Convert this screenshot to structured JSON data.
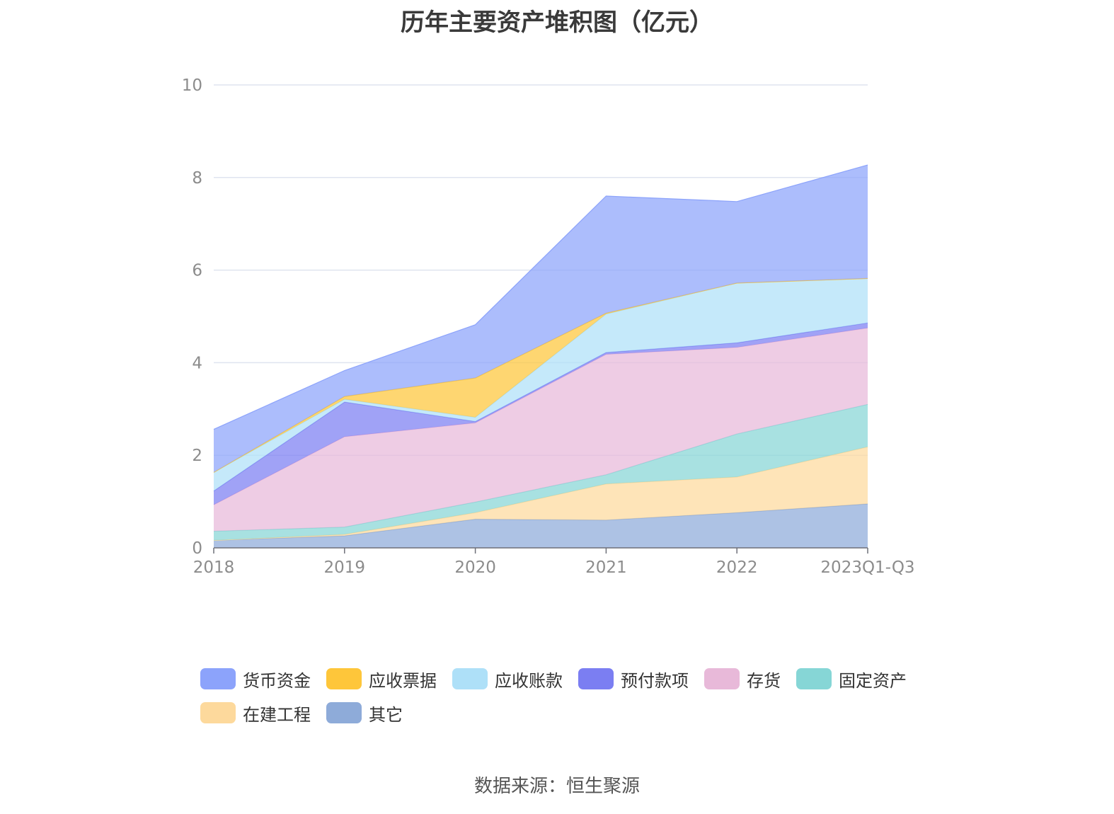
{
  "chart_data": {
    "type": "area",
    "stacked": true,
    "title": "历年主要资产堆积图（亿元）",
    "categories": [
      "2018",
      "2019",
      "2020",
      "2021",
      "2022",
      "2023Q1-Q3"
    ],
    "ylim": [
      0,
      10
    ],
    "yticks": [
      0,
      2,
      4,
      6,
      8,
      10
    ],
    "grid": true,
    "legend_position": "bottom",
    "series": [
      {
        "name": "其它",
        "color": "#8eabd9",
        "values": [
          0.16,
          0.26,
          0.62,
          0.6,
          0.76,
          0.95
        ]
      },
      {
        "name": "在建工程",
        "color": "#fdd99c",
        "values": [
          0.0,
          0.03,
          0.14,
          0.78,
          0.77,
          1.23
        ]
      },
      {
        "name": "固定资产",
        "color": "#86d6d6",
        "values": [
          0.2,
          0.16,
          0.23,
          0.2,
          0.93,
          0.92
        ]
      },
      {
        "name": "存货",
        "color": "#e8b9d9",
        "values": [
          0.57,
          1.95,
          1.71,
          2.6,
          1.87,
          1.65
        ]
      },
      {
        "name": "预付款项",
        "color": "#7b7ef2",
        "values": [
          0.3,
          0.75,
          0.03,
          0.04,
          0.1,
          0.11
        ]
      },
      {
        "name": "应收账款",
        "color": "#aee0f8",
        "values": [
          0.4,
          0.06,
          0.09,
          0.83,
          1.29,
          0.96
        ]
      },
      {
        "name": "应收票据",
        "color": "#fec63a",
        "values": [
          0.0,
          0.06,
          0.85,
          0.02,
          0.0,
          0.0
        ]
      },
      {
        "name": "货币资金",
        "color": "#8ca3fb",
        "values": [
          0.93,
          0.56,
          1.15,
          2.53,
          1.76,
          2.45
        ]
      }
    ]
  },
  "legend": {
    "items": [
      {
        "label": "货币资金",
        "color": "#8ca3fb"
      },
      {
        "label": "应收票据",
        "color": "#fec63a"
      },
      {
        "label": "应收账款",
        "color": "#aee0f8"
      },
      {
        "label": "预付款项",
        "color": "#7b7ef2"
      },
      {
        "label": "存货",
        "color": "#e8b9d9"
      },
      {
        "label": "固定资产",
        "color": "#86d6d6"
      },
      {
        "label": "在建工程",
        "color": "#fdd99c"
      },
      {
        "label": "其它",
        "color": "#8eabd9"
      }
    ]
  },
  "source": "数据来源：恒生聚源"
}
